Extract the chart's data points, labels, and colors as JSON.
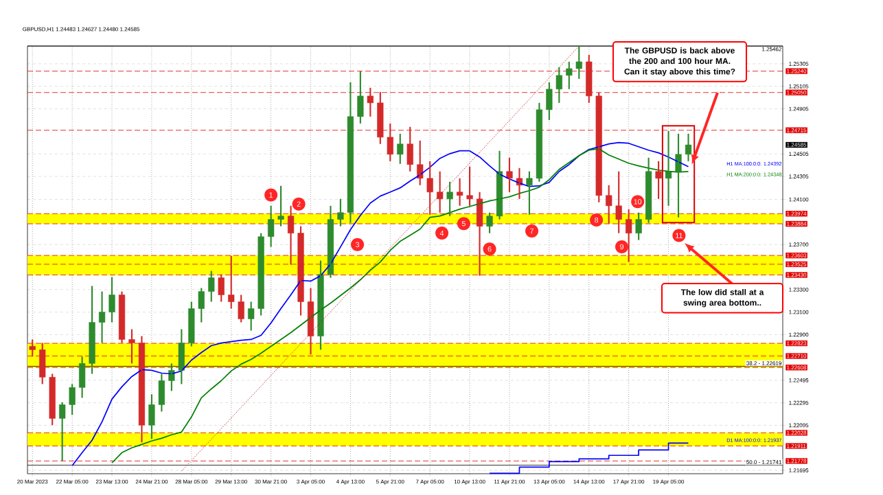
{
  "chart_data": {
    "type": "candlestick",
    "title": "GBPUSD,H1  1.24483 1.24627 1.24480 1.24585",
    "categories": [
      "20 Mar 2023",
      null,
      null,
      null,
      "22 Mar 05:00",
      null,
      null,
      null,
      "23 Mar 13:00",
      null,
      null,
      null,
      "24 Mar 21:00",
      null,
      null,
      null,
      "28 Mar 05:00",
      null,
      null,
      null,
      "29 Mar 13:00",
      null,
      null,
      null,
      "30 Mar 21:00",
      null,
      null,
      null,
      "3 Apr 05:00",
      null,
      null,
      null,
      "4 Apr 13:00",
      null,
      null,
      null,
      "5 Apr 21:00",
      null,
      null,
      null,
      "7 Apr 05:00",
      null,
      null,
      null,
      "10 Apr 13:00",
      null,
      null,
      null,
      "11 Apr 21:00",
      null,
      null,
      null,
      "13 Apr 05:00",
      null,
      null,
      null,
      "14 Apr 13:00",
      null,
      null,
      null,
      "17 Apr 21:00",
      null,
      null,
      null,
      "19 Apr 05:00",
      null,
      null
    ],
    "ohlc": [
      [
        1.22796,
        1.22857,
        1.22705,
        1.22766
      ],
      [
        1.22766,
        1.22826,
        1.22461,
        1.22522
      ],
      [
        1.22522,
        1.22552,
        1.22096,
        1.22156
      ],
      [
        1.22156,
        1.223,
        1.21778,
        1.22278
      ],
      [
        1.22278,
        1.22461,
        1.22187,
        1.22431
      ],
      [
        1.22431,
        1.22705,
        1.22339,
        1.22644
      ],
      [
        1.22644,
        1.23332,
        1.22552,
        1.23009
      ],
      [
        1.23009,
        1.23283,
        1.22826,
        1.231
      ],
      [
        1.231,
        1.23411,
        1.23009,
        1.23253
      ],
      [
        1.23253,
        1.23283,
        1.22826,
        1.22857
      ],
      [
        1.22857,
        1.22948,
        1.22644,
        1.22826
      ],
      [
        1.22826,
        1.22887,
        1.21943,
        1.22096
      ],
      [
        1.22096,
        1.2237,
        1.21974,
        1.22278
      ],
      [
        1.22278,
        1.22552,
        1.22217,
        1.22491
      ],
      [
        1.22491,
        1.22644,
        1.224,
        1.22583
      ],
      [
        1.22583,
        1.22948,
        1.22461,
        1.22826
      ],
      [
        1.22826,
        1.23192,
        1.22796,
        1.23131
      ],
      [
        1.23131,
        1.23314,
        1.23009,
        1.23283
      ],
      [
        1.23283,
        1.23466,
        1.23192,
        1.23405
      ],
      [
        1.23405,
        1.23435,
        1.23192,
        1.23253
      ],
      [
        1.23253,
        1.236,
        1.23131,
        1.23192
      ],
      [
        1.23192,
        1.23253,
        1.23009,
        1.2304
      ],
      [
        1.2304,
        1.23192,
        1.22936,
        1.23131
      ],
      [
        1.23131,
        1.23801,
        1.2307,
        1.2377
      ],
      [
        1.2377,
        1.24044,
        1.23679,
        1.23923
      ],
      [
        1.23923,
        1.24221,
        1.23862,
        1.23953
      ],
      [
        1.23953,
        1.24044,
        1.23521,
        1.23801
      ],
      [
        1.23801,
        1.23862,
        1.2307,
        1.23192
      ],
      [
        1.23192,
        1.23314,
        1.22723,
        1.22887
      ],
      [
        1.22887,
        1.23557,
        1.22766,
        1.23435
      ],
      [
        1.23435,
        1.24044,
        1.23405,
        1.23923
      ],
      [
        1.23923,
        1.24105,
        1.23862,
        1.23984
      ],
      [
        1.23984,
        1.25141,
        1.23892,
        1.24836
      ],
      [
        1.24836,
        1.25238,
        1.24775,
        1.25019
      ],
      [
        1.25019,
        1.25092,
        1.24836,
        1.24958
      ],
      [
        1.24958,
        1.25055,
        1.24593,
        1.24653
      ],
      [
        1.24653,
        1.24775,
        1.2444,
        1.24501
      ],
      [
        1.24501,
        1.24684,
        1.24416,
        1.24593
      ],
      [
        1.24593,
        1.24745,
        1.24349,
        1.2441
      ],
      [
        1.2441,
        1.24623,
        1.24227,
        1.24288
      ],
      [
        1.24288,
        1.2444,
        1.23965,
        1.24166
      ],
      [
        1.24166,
        1.24349,
        1.23984,
        1.24105
      ],
      [
        1.24105,
        1.24258,
        1.23953,
        1.24166
      ],
      [
        1.24166,
        1.24288,
        1.24044,
        1.24136
      ],
      [
        1.24136,
        1.24392,
        1.24044,
        1.24105
      ],
      [
        1.24105,
        1.24166,
        1.23423,
        1.23862
      ],
      [
        1.23862,
        1.23984,
        1.23801,
        1.23953
      ],
      [
        1.23953,
        1.24532,
        1.23923,
        1.24349
      ],
      [
        1.24349,
        1.24471,
        1.24166,
        1.24288
      ],
      [
        1.24288,
        1.24379,
        1.24105,
        1.24227
      ],
      [
        1.24227,
        1.24349,
        1.23965,
        1.24288
      ],
      [
        1.24288,
        1.24958,
        1.24258,
        1.24897
      ],
      [
        1.24897,
        1.25141,
        1.24806,
        1.2508
      ],
      [
        1.2508,
        1.25275,
        1.24958,
        1.25202
      ],
      [
        1.25202,
        1.25323,
        1.2508,
        1.25262
      ],
      [
        1.25262,
        1.25462,
        1.25171,
        1.25323
      ],
      [
        1.25323,
        1.25384,
        1.24958,
        1.25019
      ],
      [
        1.25019,
        1.25049,
        1.24075,
        1.24136
      ],
      [
        1.24136,
        1.24227,
        1.23886,
        1.24044
      ],
      [
        1.24044,
        1.24349,
        1.23801,
        1.23923
      ],
      [
        1.23923,
        1.24014,
        1.23545,
        1.23801
      ],
      [
        1.23801,
        1.23984,
        1.2374,
        1.23923
      ],
      [
        1.23923,
        1.24471,
        1.23892,
        1.24349
      ],
      [
        1.24349,
        1.2444,
        1.24105,
        1.24288
      ],
      [
        1.24288,
        1.24708,
        1.24044,
        1.24349
      ],
      [
        1.24349,
        1.24684,
        1.23941,
        1.24501
      ],
      [
        1.24501,
        1.24684,
        1.2444,
        1.24585
      ]
    ],
    "series": [
      {
        "name": "H1 MA:100:0:0: 1.24392",
        "type": "line",
        "color": "#0000ff",
        "values": [
          null,
          null,
          null,
          null,
          1.21736,
          1.21852,
          1.21962,
          1.22126,
          1.22327,
          1.22437,
          1.22528,
          1.22589,
          1.22583,
          1.22558,
          1.22552,
          1.22577,
          1.22674,
          1.22741,
          1.22802,
          1.22826,
          1.22838,
          1.2285,
          1.22857,
          1.22893,
          1.23003,
          1.23131,
          1.23253,
          1.23381,
          1.23375,
          1.23423,
          1.23527,
          1.23679,
          1.23832,
          1.23959,
          1.24068,
          1.2413,
          1.24166,
          1.24203,
          1.24264,
          1.24319,
          1.24386,
          1.24465,
          1.24507,
          1.24532,
          1.24532,
          1.24477,
          1.24398,
          1.24325,
          1.24282,
          1.24246,
          1.24215,
          1.24221,
          1.24252,
          1.24349,
          1.2441,
          1.24489,
          1.24544,
          1.24568,
          1.24593,
          1.24605,
          1.24599,
          1.24568,
          1.24538,
          1.24514,
          1.24477,
          1.24434,
          1.24392
        ]
      },
      {
        "name": "H1 MA:200:0:0: 1.24348",
        "type": "line",
        "color": "#008000",
        "values": [
          null,
          null,
          null,
          null,
          null,
          null,
          null,
          null,
          1.21761,
          1.21852,
          1.21895,
          1.21925,
          1.21956,
          1.2198,
          1.22011,
          1.22035,
          1.22169,
          1.22339,
          1.22418,
          1.22491,
          1.22577,
          1.22638,
          1.2268,
          1.22735,
          1.22796,
          1.22857,
          1.22918,
          1.22985,
          1.23052,
          1.23119,
          1.2318,
          1.23247,
          1.23314,
          1.23387,
          1.23472,
          1.23545,
          1.23648,
          1.23728,
          1.23782,
          1.23837,
          1.23941,
          1.23953,
          1.23984,
          1.24014,
          1.24038,
          1.24063,
          1.24087,
          1.24105,
          1.24124,
          1.24154,
          1.24178,
          1.24209,
          1.24276,
          1.24367,
          1.24428,
          1.24489,
          1.24538,
          1.2455,
          1.24495,
          1.24459,
          1.24422,
          1.24398,
          1.24379,
          1.24361,
          1.24349,
          1.24343,
          1.24348
        ]
      },
      {
        "name": "D1 MA:100:0:0: 1.21937",
        "type": "step",
        "color": "#0000ff",
        "values": [
          null,
          null,
          null,
          null,
          null,
          null,
          null,
          null,
          null,
          null,
          null,
          null,
          null,
          null,
          null,
          null,
          null,
          null,
          null,
          null,
          null,
          null,
          null,
          null,
          null,
          null,
          null,
          null,
          null,
          null,
          null,
          null,
          null,
          null,
          null,
          null,
          null,
          null,
          null,
          null,
          null,
          null,
          null,
          null,
          null,
          null,
          1.21669,
          1.21669,
          1.21669,
          1.21724,
          1.21724,
          1.21724,
          1.21773,
          1.21773,
          1.21773,
          1.21797,
          1.21797,
          1.21797,
          1.21828,
          1.21828,
          1.21828,
          1.21876,
          1.21876,
          1.21876,
          1.21937,
          1.21937,
          1.21937
        ]
      },
      {
        "type": "line",
        "color": "#c00000",
        "line_style": "dotted",
        "values": [
          null,
          null,
          null,
          null,
          null,
          null,
          null,
          null,
          null,
          null,
          null,
          null,
          null,
          null,
          null,
          1.21688,
          null,
          null,
          null,
          null,
          null,
          null,
          null,
          null,
          null,
          null,
          null,
          null,
          null,
          null,
          null,
          null,
          null,
          null,
          null,
          null,
          null,
          null,
          null,
          null,
          null,
          null,
          null,
          null,
          null,
          null,
          null,
          null,
          null,
          null,
          null,
          null,
          null,
          null,
          null,
          1.25462,
          null,
          null,
          null,
          null,
          null,
          null,
          null,
          null,
          null,
          null,
          null
        ]
      }
    ],
    "ylim": [
      1.21665,
      1.25463
    ],
    "yticks": [
      1.25305,
      1.25105,
      1.24905,
      1.24505,
      1.24305,
      {
        "value": 1.241,
        "label": "1.24100"
      },
      {
        "value": 1.237,
        "label": "1.23700"
      },
      {
        "value": 1.233,
        "label": "1.23300"
      },
      {
        "value": 1.231,
        "label": "1.23100"
      },
      {
        "value": 1.229,
        "label": "1.22900"
      },
      1.22495,
      1.22295,
      1.22095,
      1.21695
    ],
    "grid": true,
    "ref_lines": [
      {
        "axis": "y",
        "value": 1.25462,
        "label": "1.25462",
        "color": "#000000",
        "line_style": "solid"
      },
      {
        "axis": "y",
        "value": 1.2524,
        "label": "1.25240",
        "color": "#e00000",
        "line_style": "dashed"
      },
      {
        "axis": "y",
        "value": 1.2505,
        "label": "1.25050",
        "color": "#e00000",
        "line_style": "dashed"
      },
      {
        "axis": "y",
        "value": 1.24715,
        "label": "1.24715",
        "color": "#e00000",
        "line_style": "dashed"
      },
      {
        "axis": "y",
        "value": 1.23974,
        "label": "1.23974",
        "color": "#e00000",
        "line_style": "dashed"
      },
      {
        "axis": "y",
        "value": 1.23884,
        "label": "1.23884",
        "color": "#e00000",
        "line_style": "dashed"
      },
      {
        "axis": "y",
        "value": 1.23603,
        "label": "1.23603",
        "color": "#e00000",
        "line_style": "dashed"
      },
      {
        "axis": "y",
        "value": 1.23525,
        "label": "1.23525",
        "color": "#e00000",
        "line_style": "dashed"
      },
      {
        "axis": "y",
        "value": 1.2343,
        "label": "1.23430",
        "color": "#e00000",
        "line_style": "dashed"
      },
      {
        "axis": "y",
        "value": 1.22823,
        "label": "1.22823",
        "color": "#e00000",
        "line_style": "dashed"
      },
      {
        "axis": "y",
        "value": 1.2271,
        "label": "1.22710",
        "color": "#e00000",
        "line_style": "dashed"
      },
      {
        "axis": "y",
        "value": 1.22619,
        "color": "#000000",
        "line_style": "solid"
      },
      {
        "axis": "y",
        "value": 1.22608,
        "label": "1.22608",
        "color": "#e00000",
        "line_style": "dashed"
      },
      {
        "axis": "y",
        "value": 1.22028,
        "label": "1.22028",
        "color": "#e00000",
        "line_style": "dashed"
      },
      {
        "axis": "y",
        "value": 1.21911,
        "label": "1.21911",
        "color": "#e00000",
        "line_style": "dashed"
      },
      {
        "axis": "y",
        "value": 1.21778,
        "label": "1.21778",
        "color": "#e00000",
        "line_style": "dashed"
      },
      {
        "axis": "y",
        "value": 1.21741,
        "color": "#000000",
        "line_style": "solid"
      }
    ],
    "bands": [
      {
        "axis": "y",
        "from": 1.23884,
        "to": 1.23974,
        "color": "#ffff00"
      },
      {
        "axis": "y",
        "from": 1.2343,
        "to": 1.23603,
        "color": "#ffff00"
      },
      {
        "axis": "y",
        "from": 1.22608,
        "to": 1.22823,
        "color": "#ffff00"
      },
      {
        "axis": "y",
        "from": 1.21911,
        "to": 1.22028,
        "color": "#ffff00"
      }
    ],
    "annotations": [
      "The GBPUSD is back above the 200 and 100 hour MA. Can it stay above this time?",
      "The low did stall at a swing area bottom..",
      "1.24585",
      "1",
      "2",
      "3",
      "4",
      "5",
      "6",
      "7",
      "8",
      "9",
      "10",
      "11",
      {
        "text": "38.2 - 1.22619",
        "y": 1.22619
      },
      {
        "text": "50.0 - 1.21741",
        "y": 1.21741
      }
    ]
  }
}
